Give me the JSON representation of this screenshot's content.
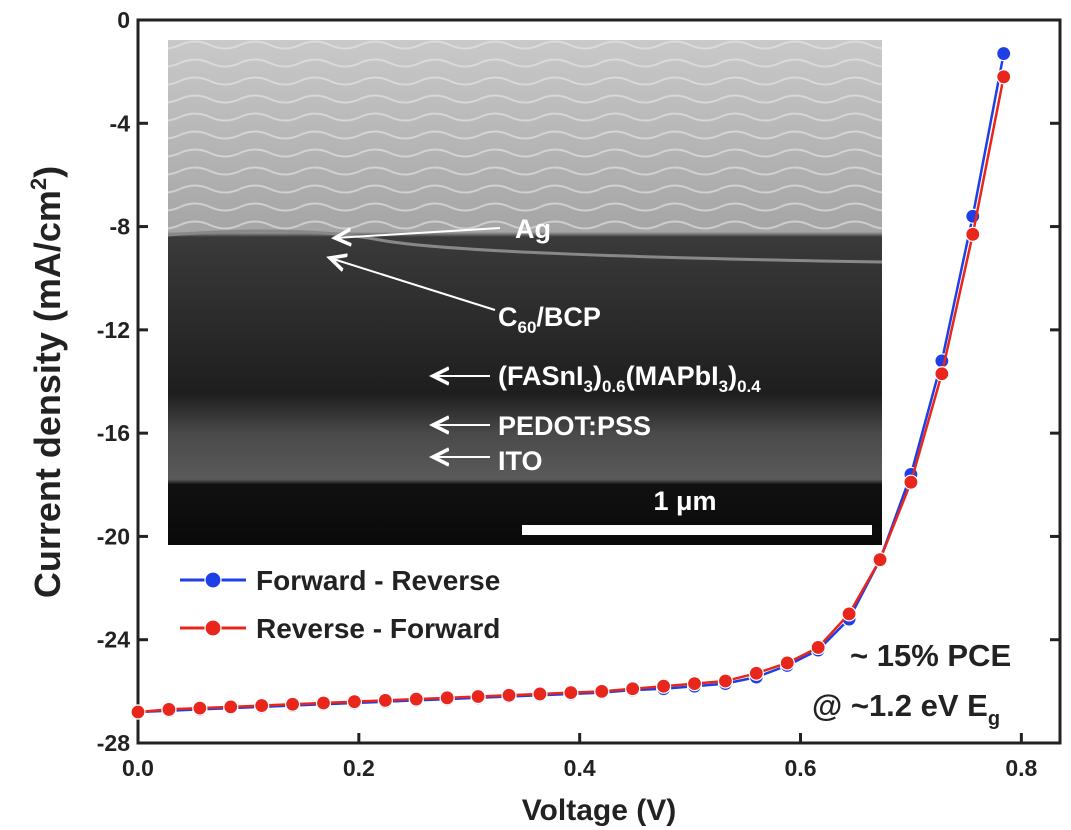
{
  "chart_data": {
    "type": "line",
    "x_label": "Voltage (V)",
    "y_label": [
      "Current density (mA/cm",
      "2",
      ")"
    ],
    "annotations": {
      "pce": "~ 15% PCE",
      "bandgap": [
        "@ ~1.2 eV E",
        "g"
      ]
    },
    "inset_labels": {
      "ag": "Ag",
      "c60": [
        "C",
        "60",
        "/BCP"
      ],
      "perovskite": [
        "(FASnI",
        "3",
        ")",
        "0.6",
        "(MAPbI",
        "3",
        ")",
        "0.4"
      ],
      "pedot": "PEDOT:PSS",
      "ito": "ITO",
      "scale": "1 μm"
    },
    "x": [
      0,
      0.028,
      0.056,
      0.084,
      0.112,
      0.14,
      0.168,
      0.196,
      0.224,
      0.252,
      0.28,
      0.308,
      0.336,
      0.364,
      0.392,
      0.42,
      0.448,
      0.476,
      0.504,
      0.532,
      0.56,
      0.588,
      0.616,
      0.644,
      0.672,
      0.7,
      0.728,
      0.756,
      0.784
    ],
    "series": [
      {
        "name": "Forward - Reverse",
        "color": "#1f3fe6",
        "values": [
          -26.8,
          -26.75,
          -26.7,
          -26.65,
          -26.6,
          -26.55,
          -26.5,
          -26.45,
          -26.4,
          -26.35,
          -26.3,
          -26.25,
          -26.2,
          -26.15,
          -26.1,
          -26.05,
          -25.95,
          -25.9,
          -25.8,
          -25.7,
          -25.45,
          -25.0,
          -24.4,
          -23.2,
          -20.9,
          -17.6,
          -13.2,
          -7.6,
          -1.3
        ]
      },
      {
        "name": "Reverse - Forward",
        "color": "#e8261c",
        "values": [
          -26.8,
          -26.7,
          -26.65,
          -26.6,
          -26.55,
          -26.5,
          -26.45,
          -26.4,
          -26.35,
          -26.3,
          -26.25,
          -26.2,
          -26.15,
          -26.1,
          -26.05,
          -26.0,
          -25.9,
          -25.8,
          -25.7,
          -25.6,
          -25.3,
          -24.9,
          -24.3,
          -23.0,
          -20.9,
          -17.9,
          -13.7,
          -8.3,
          -2.2
        ]
      }
    ],
    "xlim": [
      0,
      0.835
    ],
    "ylim": [
      -28,
      0
    ],
    "xticks": [
      {
        "value": 0,
        "label": "0.0"
      },
      0.2,
      0.4,
      0.6,
      0.8
    ],
    "yticks": [
      0,
      -4,
      -8,
      -12,
      -16,
      -20,
      -24,
      -28
    ],
    "legend": "upper left"
  }
}
